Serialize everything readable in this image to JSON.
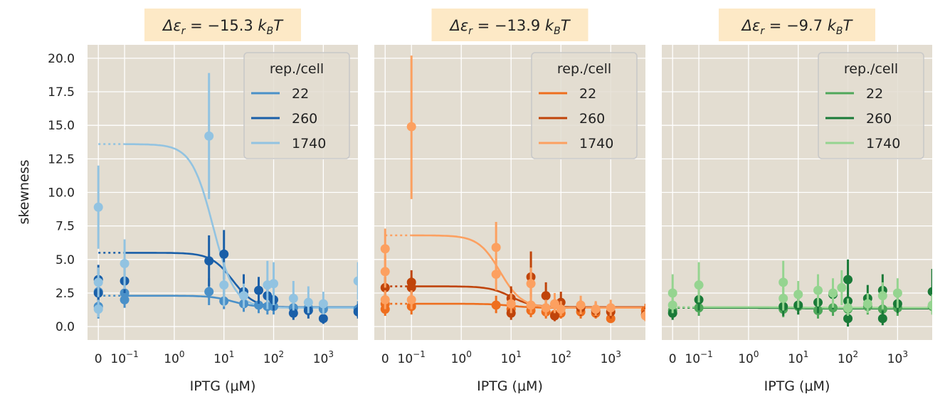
{
  "ylabel": "skewness",
  "xlabel": "IPTG (μM)",
  "x_tick_labels": [
    "0",
    "10",
    "10",
    "10",
    "10",
    "10"
  ],
  "x_tick_exponents": [
    "",
    "−1",
    "0",
    "1",
    "2",
    "3"
  ],
  "x_tick_values": [
    0,
    0.1,
    1,
    10,
    100,
    1000
  ],
  "y_ticks": [
    0.0,
    2.5,
    5.0,
    7.5,
    10.0,
    12.5,
    15.0,
    17.5,
    20.0
  ],
  "y_tick_labels": [
    "0.0",
    "2.5",
    "5.0",
    "7.5",
    "10.0",
    "12.5",
    "15.0",
    "17.5",
    "20.0"
  ],
  "legend_title": "rep./cell",
  "legend_entries": [
    "22",
    "260",
    "1740"
  ],
  "chart_data": [
    {
      "type": "scatter",
      "title_prefix": "Δε",
      "title_sub": "r",
      "title_value": " = −15.3 ",
      "title_unit": "k",
      "title_unit_sub": "B",
      "title_unit_end": "T",
      "xscale": "symlog",
      "ylim": [
        -1.0,
        21.0
      ],
      "colors": {
        "22": "#4a90c8",
        "260": "#1a5fa8",
        "1740": "#92c3e1"
      },
      "series": [
        {
          "name": "22",
          "fit_plateau": 2.3,
          "fit_low": 1.45,
          "fit_mid": 15,
          "points": [
            {
              "x": 0,
              "y": 1.5,
              "lo": 0.6,
              "hi": 2.6
            },
            {
              "x": 0,
              "y": 2.6,
              "lo": 1.8,
              "hi": 3.4
            },
            {
              "x": 0.1,
              "y": 2.0,
              "lo": 1.4,
              "hi": 2.9
            },
            {
              "x": 0.1,
              "y": 2.5,
              "lo": 1.8,
              "hi": 3.3
            },
            {
              "x": 5,
              "y": 2.6,
              "lo": 1.6,
              "hi": 3.6
            },
            {
              "x": 10,
              "y": 1.9,
              "lo": 1.3,
              "hi": 2.8
            },
            {
              "x": 25,
              "y": 1.7,
              "lo": 1.1,
              "hi": 2.5
            },
            {
              "x": 50,
              "y": 1.6,
              "lo": 1.0,
              "hi": 2.4
            },
            {
              "x": 75,
              "y": 1.5,
              "lo": 0.9,
              "hi": 2.3
            },
            {
              "x": 100,
              "y": 1.5,
              "lo": 0.9,
              "hi": 2.3
            },
            {
              "x": 250,
              "y": 1.4,
              "lo": 0.8,
              "hi": 2.1
            },
            {
              "x": 500,
              "y": 1.4,
              "lo": 0.8,
              "hi": 2.0
            },
            {
              "x": 1000,
              "y": 1.3,
              "lo": 0.7,
              "hi": 2.0
            },
            {
              "x": 5000,
              "y": 1.3,
              "lo": 0.7,
              "hi": 1.9
            }
          ]
        },
        {
          "name": "260",
          "fit_plateau": 5.5,
          "fit_low": 1.4,
          "fit_mid": 15,
          "points": [
            {
              "x": 0,
              "y": 3.5,
              "lo": 2.5,
              "hi": 4.6
            },
            {
              "x": 0,
              "y": 2.5,
              "lo": 1.7,
              "hi": 3.4
            },
            {
              "x": 0.1,
              "y": 3.4,
              "lo": 2.5,
              "hi": 4.4
            },
            {
              "x": 5,
              "y": 4.9,
              "lo": 3.0,
              "hi": 6.8
            },
            {
              "x": 10,
              "y": 5.4,
              "lo": 3.5,
              "hi": 7.2
            },
            {
              "x": 25,
              "y": 2.6,
              "lo": 1.5,
              "hi": 3.9
            },
            {
              "x": 50,
              "y": 2.7,
              "lo": 1.7,
              "hi": 3.7
            },
            {
              "x": 75,
              "y": 2.3,
              "lo": 1.4,
              "hi": 3.2
            },
            {
              "x": 100,
              "y": 2.0,
              "lo": 1.2,
              "hi": 2.9
            },
            {
              "x": 250,
              "y": 1.0,
              "lo": 0.5,
              "hi": 1.6
            },
            {
              "x": 500,
              "y": 1.2,
              "lo": 0.6,
              "hi": 1.9
            },
            {
              "x": 1000,
              "y": 0.6,
              "lo": 0.2,
              "hi": 1.1
            },
            {
              "x": 5000,
              "y": 1.1,
              "lo": 0.6,
              "hi": 1.7
            }
          ]
        },
        {
          "name": "1740",
          "fit_plateau": 13.6,
          "fit_low": 1.4,
          "fit_mid": 6,
          "points": [
            {
              "x": 0,
              "y": 8.9,
              "lo": 5.8,
              "hi": 12.0
            },
            {
              "x": 0,
              "y": 3.3,
              "lo": 2.2,
              "hi": 4.4
            },
            {
              "x": 0,
              "y": 1.3,
              "lo": 0.7,
              "hi": 2.0
            },
            {
              "x": 0.1,
              "y": 4.7,
              "lo": 2.8,
              "hi": 6.5
            },
            {
              "x": 5,
              "y": 14.2,
              "lo": 9.5,
              "hi": 18.9
            },
            {
              "x": 10,
              "y": 3.1,
              "lo": 1.5,
              "hi": 4.8
            },
            {
              "x": 25,
              "y": 2.3,
              "lo": 1.4,
              "hi": 3.2
            },
            {
              "x": 75,
              "y": 3.1,
              "lo": 1.3,
              "hi": 4.9
            },
            {
              "x": 100,
              "y": 3.2,
              "lo": 1.6,
              "hi": 4.8
            },
            {
              "x": 250,
              "y": 2.1,
              "lo": 1.2,
              "hi": 3.4
            },
            {
              "x": 500,
              "y": 1.8,
              "lo": 1.0,
              "hi": 3.0
            },
            {
              "x": 1000,
              "y": 1.7,
              "lo": 0.9,
              "hi": 2.6
            },
            {
              "x": 5000,
              "y": 3.4,
              "lo": 2.0,
              "hi": 4.8
            }
          ]
        }
      ]
    },
    {
      "type": "scatter",
      "title_prefix": "Δε",
      "title_sub": "r",
      "title_value": " = −13.9 ",
      "title_unit": "k",
      "title_unit_sub": "B",
      "title_unit_end": "T",
      "xscale": "symlog",
      "ylim": [
        -1.0,
        21.0
      ],
      "colors": {
        "22": "#ee6e1e",
        "260": "#c0440a",
        "1740": "#fca060"
      },
      "series": [
        {
          "name": "22",
          "fit_plateau": 1.7,
          "fit_low": 1.4,
          "fit_mid": 10,
          "points": [
            {
              "x": 0,
              "y": 1.3,
              "lo": 0.8,
              "hi": 1.9
            },
            {
              "x": 0,
              "y": 1.7,
              "lo": 1.1,
              "hi": 2.3
            },
            {
              "x": 0.1,
              "y": 1.5,
              "lo": 0.9,
              "hi": 2.1
            },
            {
              "x": 5,
              "y": 1.6,
              "lo": 1.0,
              "hi": 2.3
            },
            {
              "x": 10,
              "y": 1.3,
              "lo": 0.8,
              "hi": 1.9
            },
            {
              "x": 25,
              "y": 1.2,
              "lo": 0.7,
              "hi": 1.8
            },
            {
              "x": 50,
              "y": 1.1,
              "lo": 0.6,
              "hi": 1.7
            },
            {
              "x": 75,
              "y": 0.9,
              "lo": 0.5,
              "hi": 1.5
            },
            {
              "x": 100,
              "y": 1.0,
              "lo": 0.6,
              "hi": 1.5
            },
            {
              "x": 250,
              "y": 1.1,
              "lo": 0.6,
              "hi": 1.7
            },
            {
              "x": 500,
              "y": 1.0,
              "lo": 0.6,
              "hi": 1.6
            },
            {
              "x": 1000,
              "y": 0.6,
              "lo": 0.3,
              "hi": 1.0
            },
            {
              "x": 5000,
              "y": 1.2,
              "lo": 0.7,
              "hi": 1.7
            }
          ]
        },
        {
          "name": "260",
          "fit_plateau": 3.0,
          "fit_low": 1.45,
          "fit_mid": 10,
          "points": [
            {
              "x": 0,
              "y": 2.9,
              "lo": 2.1,
              "hi": 3.7
            },
            {
              "x": 0.1,
              "y": 3.3,
              "lo": 2.4,
              "hi": 4.2
            },
            {
              "x": 0.1,
              "y": 2.9,
              "lo": 2.1,
              "hi": 3.7
            },
            {
              "x": 10,
              "y": 2.1,
              "lo": 1.3,
              "hi": 3.0
            },
            {
              "x": 10,
              "y": 1.0,
              "lo": 0.5,
              "hi": 1.5
            },
            {
              "x": 25,
              "y": 3.7,
              "lo": 2.2,
              "hi": 5.6
            },
            {
              "x": 50,
              "y": 2.3,
              "lo": 1.3,
              "hi": 3.3
            },
            {
              "x": 75,
              "y": 0.8,
              "lo": 0.4,
              "hi": 1.3
            },
            {
              "x": 100,
              "y": 1.8,
              "lo": 1.1,
              "hi": 2.6
            },
            {
              "x": 250,
              "y": 1.4,
              "lo": 0.8,
              "hi": 2.0
            },
            {
              "x": 500,
              "y": 1.2,
              "lo": 0.7,
              "hi": 1.8
            },
            {
              "x": 1000,
              "y": 1.1,
              "lo": 0.6,
              "hi": 1.6
            },
            {
              "x": 5000,
              "y": 0.9,
              "lo": 0.5,
              "hi": 1.4
            }
          ]
        },
        {
          "name": "1740",
          "fit_plateau": 6.8,
          "fit_low": 1.4,
          "fit_mid": 6,
          "points": [
            {
              "x": 0,
              "y": 5.8,
              "lo": 4.2,
              "hi": 7.3
            },
            {
              "x": 0,
              "y": 4.1,
              "lo": 2.9,
              "hi": 5.3
            },
            {
              "x": 0,
              "y": 2.0,
              "lo": 1.3,
              "hi": 2.7
            },
            {
              "x": 0.1,
              "y": 14.9,
              "lo": 9.5,
              "hi": 20.2
            },
            {
              "x": 0.1,
              "y": 2.0,
              "lo": 1.3,
              "hi": 2.7
            },
            {
              "x": 5,
              "y": 5.9,
              "lo": 4.0,
              "hi": 7.8
            },
            {
              "x": 5,
              "y": 3.9,
              "lo": 2.7,
              "hi": 5.1
            },
            {
              "x": 10,
              "y": 1.7,
              "lo": 1.0,
              "hi": 2.5
            },
            {
              "x": 25,
              "y": 3.2,
              "lo": 2.0,
              "hi": 4.4
            },
            {
              "x": 25,
              "y": 1.6,
              "lo": 1.0,
              "hi": 2.3
            },
            {
              "x": 50,
              "y": 1.4,
              "lo": 0.8,
              "hi": 2.0
            },
            {
              "x": 75,
              "y": 1.7,
              "lo": 1.0,
              "hi": 2.5
            },
            {
              "x": 100,
              "y": 1.3,
              "lo": 0.8,
              "hi": 1.9
            },
            {
              "x": 250,
              "y": 1.6,
              "lo": 0.9,
              "hi": 2.3
            },
            {
              "x": 500,
              "y": 1.3,
              "lo": 0.8,
              "hi": 1.9
            },
            {
              "x": 1000,
              "y": 1.4,
              "lo": 0.8,
              "hi": 2.0
            },
            {
              "x": 5000,
              "y": 0.8,
              "lo": 0.4,
              "hi": 1.3
            }
          ]
        }
      ]
    },
    {
      "type": "scatter",
      "title_prefix": "Δε",
      "title_sub": "r",
      "title_value": " = −9.7 ",
      "title_unit": "k",
      "title_unit_sub": "B",
      "title_unit_end": "T",
      "xscale": "symlog",
      "ylim": [
        -1.0,
        21.0
      ],
      "colors": {
        "22": "#4fa75a",
        "260": "#1a7a38",
        "1740": "#95d490"
      },
      "series": [
        {
          "name": "22",
          "fit_plateau": 1.4,
          "fit_low": 1.35,
          "fit_mid": 10,
          "points": [
            {
              "x": 0,
              "y": 1.2,
              "lo": 0.6,
              "hi": 1.8
            },
            {
              "x": 0.1,
              "y": 1.4,
              "lo": 0.8,
              "hi": 2.0
            },
            {
              "x": 5,
              "y": 1.3,
              "lo": 0.7,
              "hi": 1.9
            },
            {
              "x": 10,
              "y": 1.5,
              "lo": 0.9,
              "hi": 2.1
            },
            {
              "x": 25,
              "y": 1.2,
              "lo": 0.6,
              "hi": 1.8
            },
            {
              "x": 50,
              "y": 1.4,
              "lo": 0.8,
              "hi": 2.0
            },
            {
              "x": 100,
              "y": 1.3,
              "lo": 0.7,
              "hi": 1.9
            },
            {
              "x": 250,
              "y": 1.5,
              "lo": 0.9,
              "hi": 2.1
            },
            {
              "x": 500,
              "y": 1.3,
              "lo": 0.7,
              "hi": 1.9
            },
            {
              "x": 1000,
              "y": 1.4,
              "lo": 0.8,
              "hi": 2.0
            },
            {
              "x": 5000,
              "y": 1.5,
              "lo": 0.9,
              "hi": 2.1
            }
          ]
        },
        {
          "name": "260",
          "fit_plateau": 1.4,
          "fit_low": 1.35,
          "fit_mid": 10,
          "points": [
            {
              "x": 0,
              "y": 1.0,
              "lo": 0.5,
              "hi": 1.6
            },
            {
              "x": 0.1,
              "y": 2.0,
              "lo": 1.2,
              "hi": 2.8
            },
            {
              "x": 5,
              "y": 1.5,
              "lo": 0.8,
              "hi": 2.3
            },
            {
              "x": 10,
              "y": 1.6,
              "lo": 0.9,
              "hi": 2.4
            },
            {
              "x": 25,
              "y": 1.8,
              "lo": 1.0,
              "hi": 2.6
            },
            {
              "x": 50,
              "y": 2.4,
              "lo": 1.3,
              "hi": 3.5
            },
            {
              "x": 100,
              "y": 3.5,
              "lo": 2.0,
              "hi": 5.0
            },
            {
              "x": 100,
              "y": 1.9,
              "lo": 1.0,
              "hi": 2.9
            },
            {
              "x": 100,
              "y": 0.6,
              "lo": 0.0,
              "hi": 1.2
            },
            {
              "x": 250,
              "y": 2.1,
              "lo": 1.2,
              "hi": 3.1
            },
            {
              "x": 500,
              "y": 2.7,
              "lo": 1.5,
              "hi": 3.9
            },
            {
              "x": 500,
              "y": 0.6,
              "lo": 0.1,
              "hi": 1.2
            },
            {
              "x": 1000,
              "y": 1.7,
              "lo": 1.0,
              "hi": 2.5
            },
            {
              "x": 5000,
              "y": 2.6,
              "lo": 1.5,
              "hi": 4.3
            }
          ]
        },
        {
          "name": "1740",
          "fit_plateau": 1.45,
          "fit_low": 1.4,
          "fit_mid": 10,
          "points": [
            {
              "x": 0,
              "y": 2.5,
              "lo": 1.4,
              "hi": 3.9
            },
            {
              "x": 0,
              "y": 1.6,
              "lo": 1.0,
              "hi": 2.3
            },
            {
              "x": 0.1,
              "y": 3.1,
              "lo": 1.8,
              "hi": 4.8
            },
            {
              "x": 5,
              "y": 3.3,
              "lo": 1.8,
              "hi": 4.9
            },
            {
              "x": 5,
              "y": 2.1,
              "lo": 1.2,
              "hi": 3.0
            },
            {
              "x": 10,
              "y": 2.4,
              "lo": 1.4,
              "hi": 3.4
            },
            {
              "x": 25,
              "y": 2.7,
              "lo": 1.5,
              "hi": 3.9
            },
            {
              "x": 50,
              "y": 2.5,
              "lo": 1.4,
              "hi": 3.6
            },
            {
              "x": 75,
              "y": 2.9,
              "lo": 1.6,
              "hi": 4.2
            },
            {
              "x": 100,
              "y": 1.4,
              "lo": 0.8,
              "hi": 2.1
            },
            {
              "x": 250,
              "y": 1.7,
              "lo": 1.0,
              "hi": 2.5
            },
            {
              "x": 500,
              "y": 2.3,
              "lo": 1.3,
              "hi": 3.3
            },
            {
              "x": 1000,
              "y": 2.5,
              "lo": 1.4,
              "hi": 3.6
            },
            {
              "x": 5000,
              "y": 1.6,
              "lo": 0.9,
              "hi": 2.4
            }
          ]
        }
      ]
    }
  ]
}
